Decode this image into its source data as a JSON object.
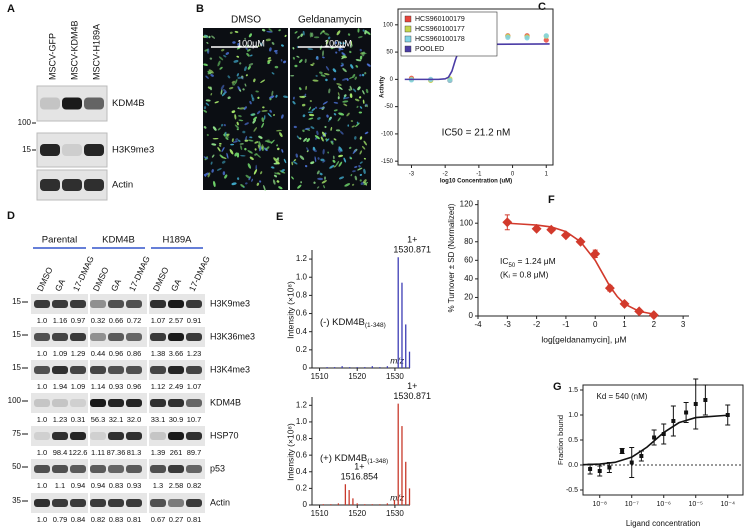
{
  "figure": {
    "A": {
      "label": "A",
      "columns": [
        "MSCV-GFP",
        "MSCV-KDM4B",
        "MSCV-H189A"
      ],
      "rows": [
        {
          "name": "KDM4B",
          "marker": "100"
        },
        {
          "name": "H3K9me3",
          "marker": "15"
        },
        {
          "name": "Actin"
        }
      ]
    },
    "B": {
      "label": "B",
      "columns": [
        "DMSO",
        "Geldanamycin"
      ],
      "scale_bar": "100μM"
    },
    "D": {
      "label": "D",
      "groups": [
        "Parental",
        "KDM4B",
        "H189A"
      ],
      "lanes": [
        "DMSO",
        "GA",
        "17-DMAG"
      ],
      "rows": [
        {
          "name": "H3K9me3",
          "marker": "15",
          "quant": [
            "1.0",
            "1.16",
            "0.97",
            "0.32",
            "0.66",
            "0.72",
            "1.07",
            "2.57",
            "0.91"
          ]
        },
        {
          "name": "H3K36me3",
          "marker": "15",
          "quant": [
            "1.0",
            "1.09",
            "1.29",
            "0.44",
            "0.96",
            "0.86",
            "1.38",
            "3.66",
            "1.23"
          ]
        },
        {
          "name": "H3K4me3",
          "marker": "15",
          "quant": [
            "1.0",
            "1.94",
            "1.09",
            "1.14",
            "0.93",
            "0.96",
            "1.12",
            "2.49",
            "1.07"
          ]
        },
        {
          "name": "KDM4B",
          "marker": "100",
          "quant": [
            "1.0",
            "1.23",
            "0.31",
            "56.3",
            "32.1",
            "32.0",
            "33.1",
            "30.9",
            "10.7"
          ]
        },
        {
          "name": "HSP70",
          "marker": "75",
          "quant": [
            "1.0",
            "98.4",
            "122.6",
            "1.11",
            "87.36",
            "81.3",
            "1.39",
            "261",
            "89.7"
          ]
        },
        {
          "name": "p53",
          "marker": "50",
          "quant": [
            "1.0",
            "1.1",
            "0.94",
            "0.94",
            "0.83",
            "0.93",
            "1.3",
            "2.58",
            "0.82"
          ]
        },
        {
          "name": "Actin",
          "marker": "35",
          "quant": [
            "1.0",
            "0.79",
            "0.84",
            "0.82",
            "0.83",
            "0.81",
            "0.67",
            "0.27",
            "0.81"
          ]
        }
      ]
    }
  },
  "chart_data": [
    {
      "panel": "C",
      "type": "scatter",
      "xlabel": "log10 Concentration (uM)",
      "ylabel": "Activity",
      "annotation": "IC50 = 21.2 nM",
      "legend": "upper left",
      "xlim": [
        -3.4,
        1.2
      ],
      "ylim": [
        -157,
        129
      ],
      "xticks": [
        -3,
        -2,
        -1,
        0,
        1
      ],
      "yticks": [
        -150,
        -100,
        -50,
        0,
        50,
        100
      ],
      "x": [
        -3,
        -2.43,
        -1.86,
        -1.29,
        -0.71,
        -0.14,
        0.43,
        1
      ],
      "series": [
        {
          "name": "HCS960100179",
          "color": "#e8453c",
          "values": [
            2,
            -1,
            -2,
            63,
            76,
            80,
            80,
            72
          ]
        },
        {
          "name": "HCS960100177",
          "color": "#c5d64b",
          "values": [
            0,
            -2,
            1,
            62,
            75,
            79,
            78,
            79
          ]
        },
        {
          "name": "HCS960100178",
          "color": "#7fd3e6",
          "values": [
            -1,
            0,
            -2,
            61,
            73,
            77,
            76,
            80
          ]
        },
        {
          "name": "POOLED",
          "color": "#4b3ca6",
          "type": "line",
          "x": [
            -3.2,
            -2.2,
            -2,
            -1.9,
            -1.8,
            -1.7,
            -1.6,
            -1.5,
            -1.4,
            1.1
          ],
          "values": [
            0,
            0,
            1,
            4,
            15,
            35,
            52,
            61,
            64,
            65
          ]
        }
      ]
    },
    {
      "panel": "E",
      "type": "stem",
      "ylabel": "Intensity (×10⁸)",
      "xlabel": "m/z",
      "annotation": "(-) KDM4B",
      "annotation_subscript": "(1-348)",
      "color": "#3d3db5",
      "xlim": [
        1508,
        1534
      ],
      "ylim": [
        0,
        1.3
      ],
      "xticks": [
        1510,
        1520,
        1530
      ],
      "yticks": [
        0,
        0.2,
        0.4,
        0.6,
        0.8,
        {
          "value": 1,
          "label": "1.0"
        },
        1.2
      ],
      "x": [
        1512,
        1514,
        1516,
        1518,
        1520,
        1522,
        1524,
        1526,
        1528,
        1530.871,
        1531.871,
        1532.871,
        1533.871
      ],
      "values": [
        0.01,
        0.01,
        0.02,
        0.01,
        0.01,
        0.01,
        0.02,
        0.01,
        0.02,
        1.22,
        0.94,
        0.48,
        0.18
      ],
      "peak_labels": [
        {
          "charge": "1+",
          "mz": 1530.871
        }
      ]
    },
    {
      "type": "stem",
      "ylabel": "Intensity (×10⁸)",
      "xlabel": "m/z",
      "annotation": "(+) KDM4B",
      "annotation_subscript": "(1-348)",
      "color": "#c8392b",
      "xlim": [
        1508,
        1534
      ],
      "ylim": [
        0,
        1.3
      ],
      "xticks": [
        1510,
        1520,
        1530
      ],
      "yticks": [
        0,
        0.2,
        0.4,
        0.6,
        0.8,
        {
          "value": 1,
          "label": "1.0"
        },
        1.2
      ],
      "x": [
        1511,
        1513,
        1515,
        1516.854,
        1517.854,
        1518.854,
        1520,
        1522,
        1524,
        1526,
        1528,
        1529.871,
        1530.871,
        1531.871,
        1532.871,
        1533.871
      ],
      "values": [
        0.01,
        0.01,
        0.02,
        0.25,
        0.18,
        0.08,
        0.02,
        0.01,
        0.01,
        0.01,
        0.02,
        0.06,
        1.22,
        0.95,
        0.52,
        0.2
      ],
      "peak_labels": [
        {
          "charge": "1+",
          "mz": 1530.871
        },
        {
          "charge": "1+",
          "mz": 1516.854
        }
      ]
    },
    {
      "panel": "F",
      "type": "scatter",
      "marker": "diamond",
      "xlabel": "log[geldanamycin], μM",
      "ylabel": "% Turnover ± SD (Normalized)",
      "annotation": "IC",
      "annotation_subscript": "50",
      "annotation_suffix": " = 1.24 μM",
      "annotation2": "(Kᵢ = 0.8 μM)",
      "xlim": [
        -4,
        3.2
      ],
      "ylim": [
        0,
        125
      ],
      "xticks": [
        -4,
        -3,
        -2,
        -1,
        0,
        1,
        2,
        3
      ],
      "yticks": [
        0,
        20,
        40,
        60,
        80,
        100,
        120
      ],
      "series": [
        {
          "color": "#d23a2c",
          "x": [
            -3,
            -2,
            -1.5,
            -1,
            -0.5,
            0,
            0.5,
            1,
            1.5,
            2
          ],
          "values": [
            101,
            94,
            93,
            87,
            80,
            67,
            30,
            13,
            5,
            1
          ],
          "errors": [
            8,
            2,
            2,
            2,
            2,
            4,
            3,
            2,
            1,
            1
          ]
        },
        {
          "type": "line",
          "color": "#d23a2c",
          "x": [
            -3,
            -2.5,
            -2,
            -1.5,
            -1,
            -0.5,
            0,
            0.25,
            0.5,
            0.75,
            1,
            1.5,
            2
          ],
          "values": [
            100,
            99,
            98,
            96,
            91,
            80,
            60,
            46,
            32,
            21,
            13,
            5,
            2
          ]
        }
      ]
    },
    {
      "panel": "G",
      "type": "scatter",
      "marker": "square",
      "xscale": "log",
      "zero_line": true,
      "xlabel": "Ligand concentration",
      "ylabel": "Fraction bound",
      "annotation": "Kd = 540 (nM)",
      "xlim": [
        3e-09,
        0.0003
      ],
      "ylim": [
        -0.6,
        1.6
      ],
      "xticks": [
        {
          "value": 1e-08,
          "label": "10⁻⁸"
        },
        {
          "value": 1e-07,
          "label": "10⁻⁷"
        },
        {
          "value": 1e-06,
          "label": "10⁻⁶"
        },
        {
          "value": 1e-05,
          "label": "10⁻⁵"
        },
        {
          "value": 0.0001,
          "label": "10⁻⁴"
        }
      ],
      "yticks": [
        -0.5,
        {
          "value": 0,
          "label": "0.0"
        },
        0.5,
        {
          "value": 1,
          "label": "1.0"
        },
        1.5
      ],
      "series": [
        {
          "color": "#111111",
          "x": [
            5e-09,
            1e-08,
            2e-08,
            5e-08,
            1e-07,
            2e-07,
            5e-07,
            1e-06,
            2e-06,
            5e-06,
            1e-05,
            2e-05,
            0.0001
          ],
          "values": [
            -0.08,
            -0.12,
            -0.05,
            0.28,
            0.05,
            0.18,
            0.55,
            0.62,
            0.88,
            1.05,
            1.22,
            1.3,
            1.0
          ],
          "errors": [
            0.1,
            0.1,
            0.1,
            0.05,
            0.3,
            0.1,
            0.15,
            0.2,
            0.3,
            0.2,
            0.5,
            0.3,
            0.2
          ]
        },
        {
          "type": "line",
          "color": "#111111",
          "x": [
            3e-09,
            1e-08,
            3e-08,
            1e-07,
            3e-07,
            1e-06,
            3e-06,
            1e-05,
            0.0001
          ],
          "values": [
            0.006,
            0.018,
            0.053,
            0.156,
            0.357,
            0.649,
            0.847,
            0.949,
            0.995
          ]
        }
      ]
    }
  ]
}
